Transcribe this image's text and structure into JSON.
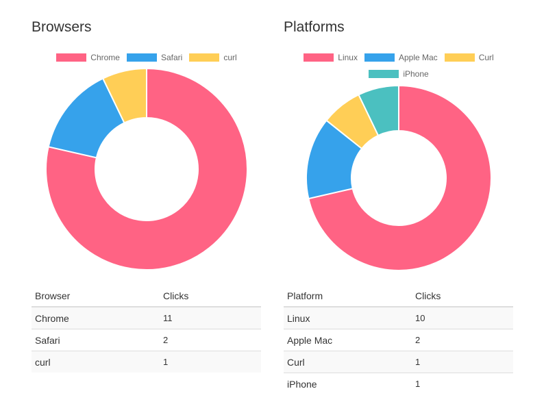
{
  "chart_data": [
    {
      "type": "doughnut",
      "title": "Browsers",
      "categories": [
        "Chrome",
        "Safari",
        "curl"
      ],
      "values": [
        11,
        2,
        1
      ],
      "colors": [
        "#ff6384",
        "#36a2eb",
        "#ffce56"
      ],
      "table": {
        "headers": [
          "Browser",
          "Clicks"
        ],
        "rows": [
          [
            "Chrome",
            "11"
          ],
          [
            "Safari",
            "2"
          ],
          [
            "curl",
            "1"
          ]
        ]
      }
    },
    {
      "type": "doughnut",
      "title": "Platforms",
      "categories": [
        "Linux",
        "Apple Mac",
        "Curl",
        "iPhone"
      ],
      "values": [
        10,
        2,
        1,
        1
      ],
      "colors": [
        "#ff6384",
        "#36a2eb",
        "#ffce56",
        "#4bc0c0"
      ],
      "table": {
        "headers": [
          "Platform",
          "Clicks"
        ],
        "rows": [
          [
            "Linux",
            "10"
          ],
          [
            "Apple Mac",
            "2"
          ],
          [
            "Curl",
            "1"
          ],
          [
            "iPhone",
            "1"
          ]
        ]
      }
    }
  ]
}
